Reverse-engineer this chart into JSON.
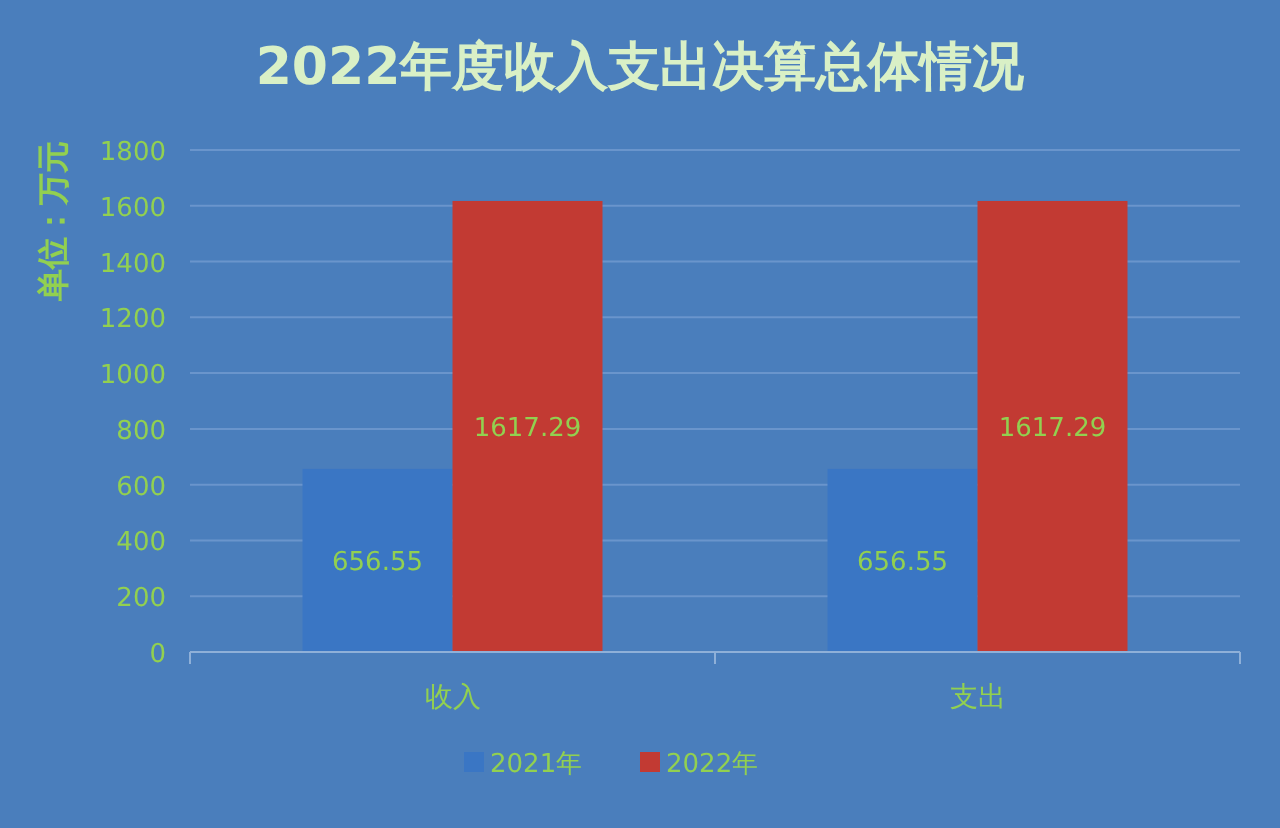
{
  "chart_data": {
    "type": "bar",
    "title": "2022年度收入支出决算总体情况",
    "ylabel": "单位：万元",
    "categories": [
      "收入",
      "支出"
    ],
    "series": [
      {
        "name": "2021年",
        "color": "#3a76c4",
        "values": [
          656.55,
          656.55
        ]
      },
      {
        "name": "2022年",
        "color": "#c23a33",
        "values": [
          1617.29,
          1617.29
        ]
      }
    ],
    "ylim": [
      0,
      1800
    ],
    "yticks": [
      0,
      200,
      400,
      600,
      800,
      1000,
      1200,
      1400,
      1600,
      1800
    ],
    "grid": "y",
    "legend": "bottom",
    "data_labels": true
  }
}
